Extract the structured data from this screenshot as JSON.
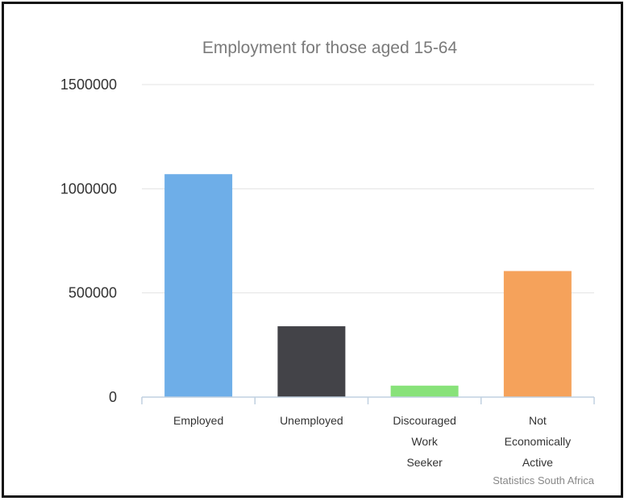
{
  "chart_data": {
    "type": "bar",
    "title": "Employment for those aged 15-64",
    "categories": [
      "Employed",
      "Unemployed",
      "Discouraged Work Seeker",
      "Not Economically Active"
    ],
    "category_label_lines": [
      [
        "Employed"
      ],
      [
        "Unemployed"
      ],
      [
        "Discouraged",
        "Work",
        "Seeker"
      ],
      [
        "Not",
        "Economically",
        "Active"
      ]
    ],
    "values": [
      1070000,
      340000,
      55000,
      605000
    ],
    "colors": [
      "#6eaee8",
      "#434348",
      "#88e27a",
      "#f5a25b"
    ],
    "ylim": [
      0,
      1500000
    ],
    "yticks": [
      0,
      500000,
      1000000,
      1500000
    ],
    "ytick_labels": [
      "0",
      "500000",
      "1000000",
      "1500000"
    ],
    "grid": true,
    "legend": false,
    "credit": "Statistics South Africa"
  }
}
